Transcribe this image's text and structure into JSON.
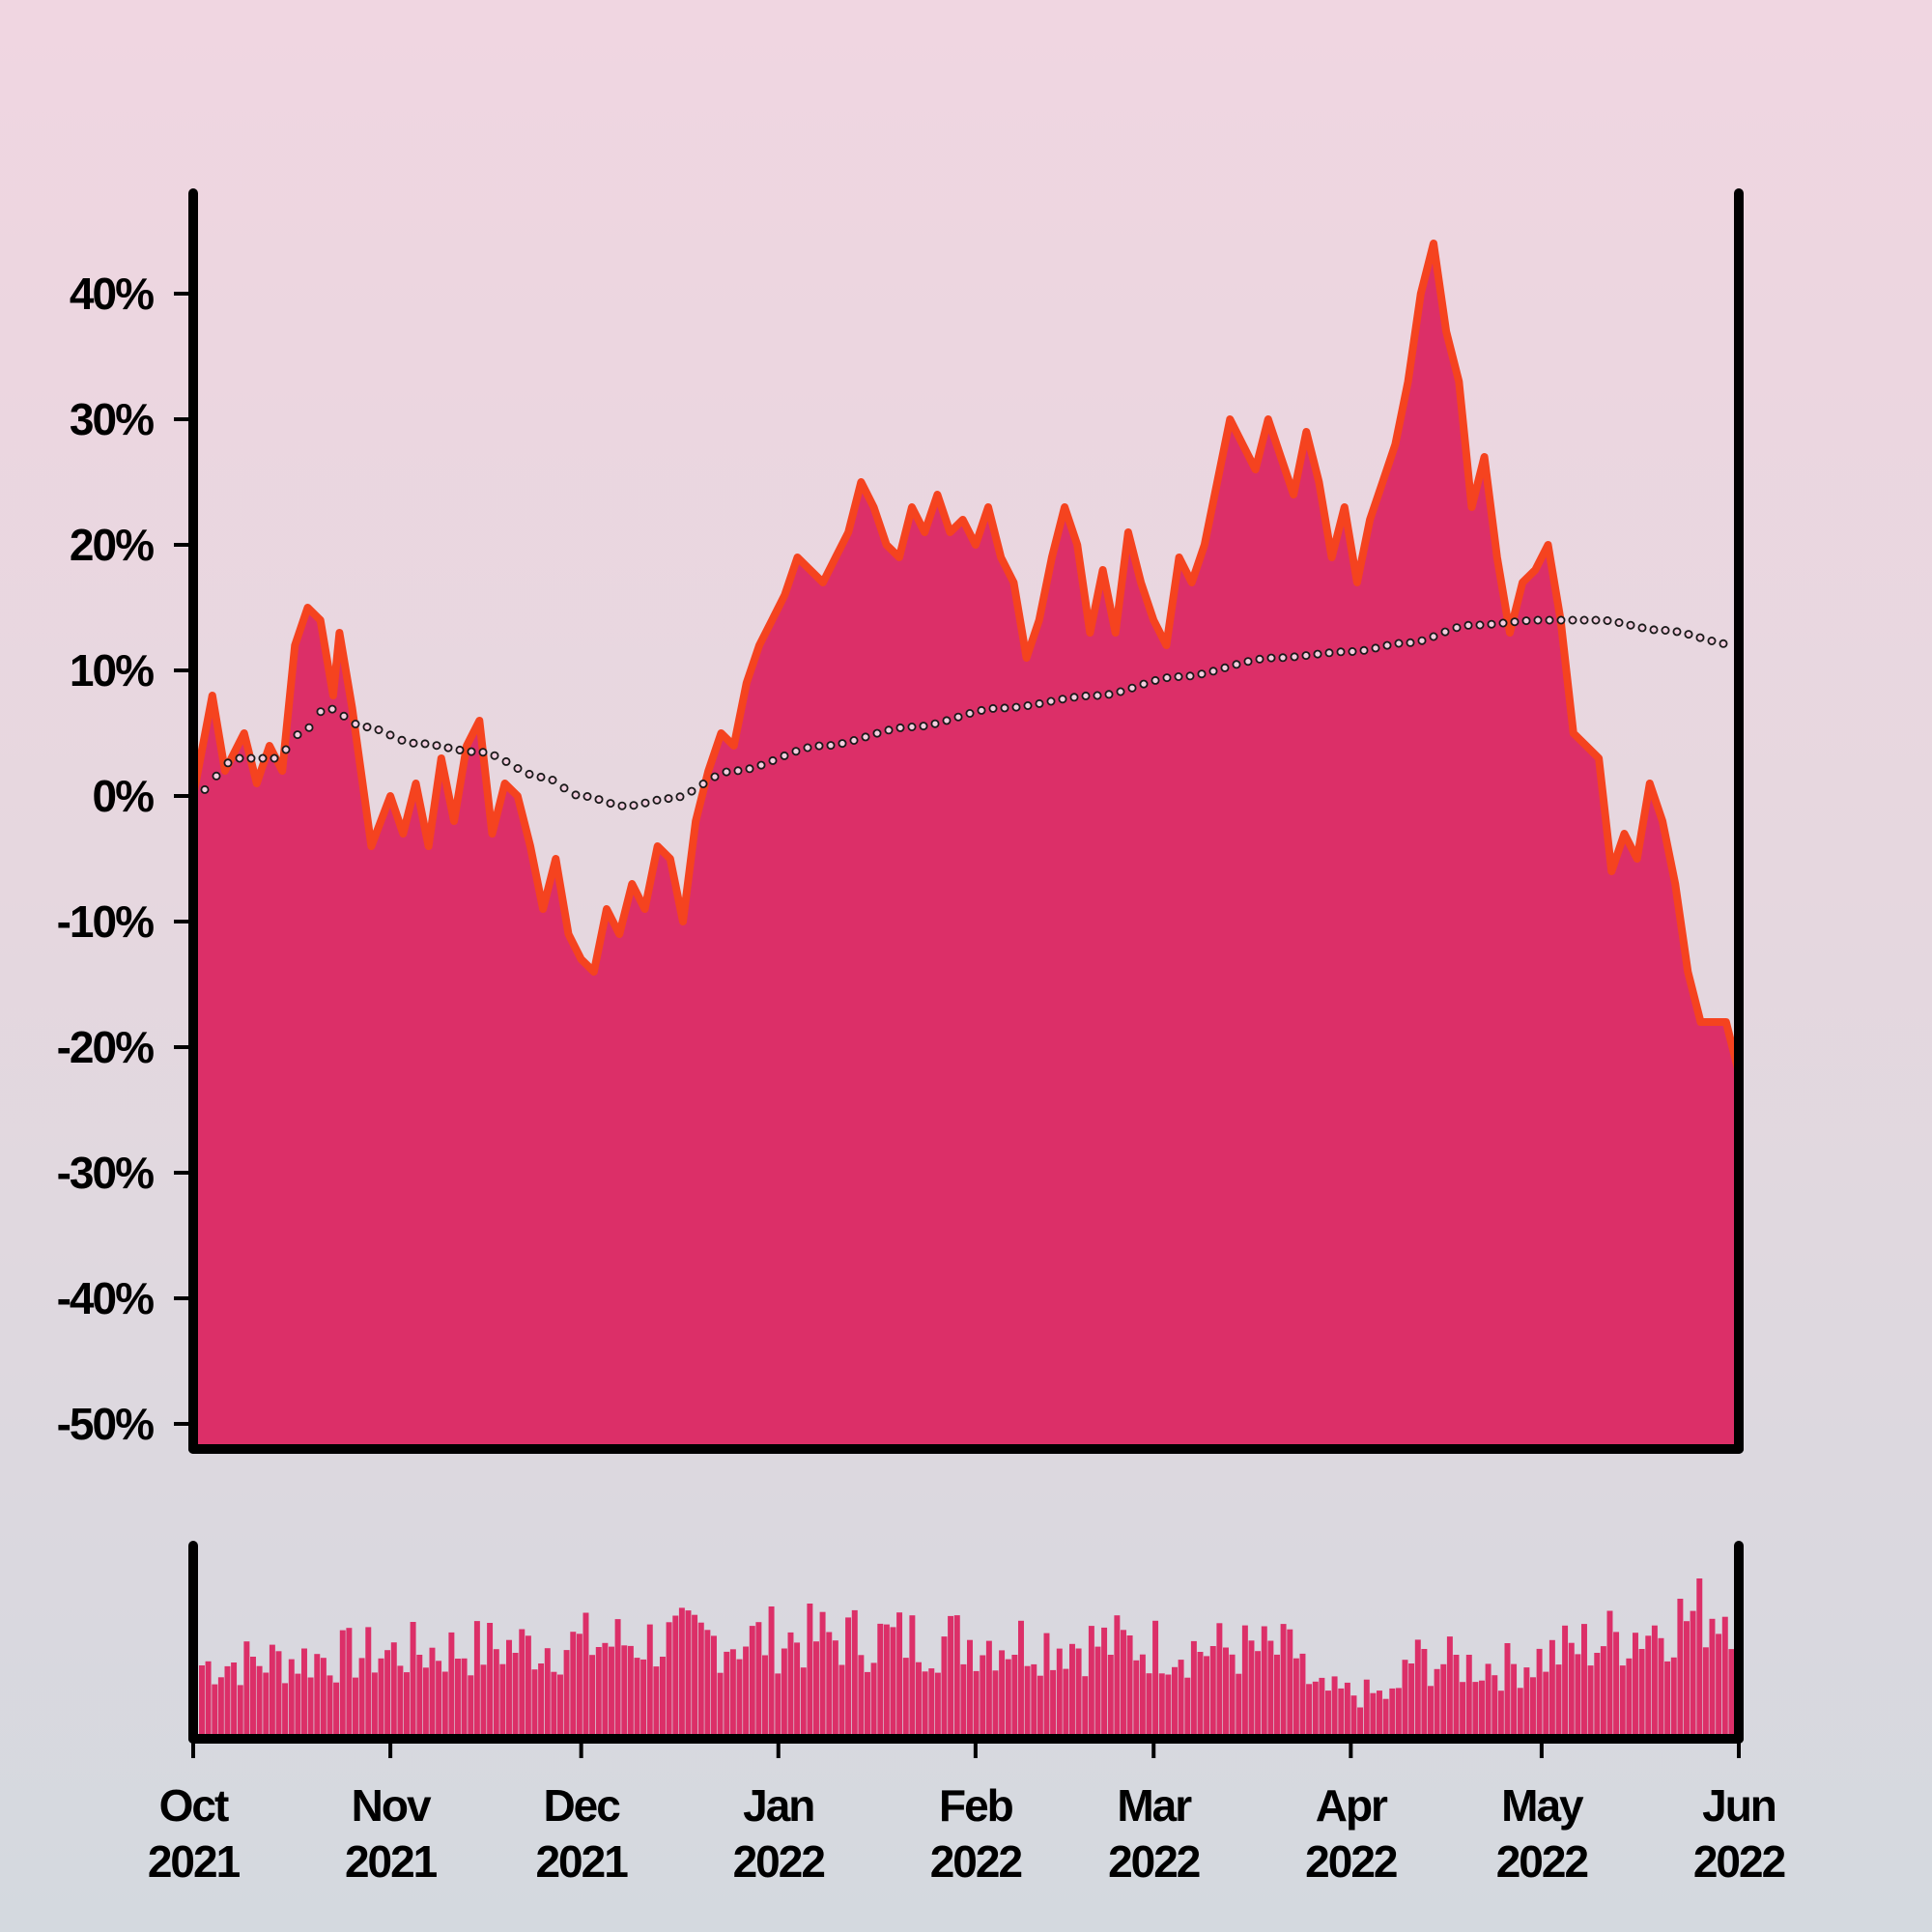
{
  "chart_data": {
    "type": "area",
    "title": "",
    "xlabel": "",
    "ylabel": "",
    "x_start": "2021-10-01",
    "x_end": "2022-06-01",
    "ylim": [
      -52,
      48
    ],
    "y_ticks": [
      40,
      30,
      20,
      10,
      0,
      -10,
      -20,
      -30,
      -40,
      -50
    ],
    "y_tick_labels": [
      "40%",
      "30%",
      "20%",
      "10%",
      "0%",
      "-10%",
      "-20%",
      "-30%",
      "-40%",
      "-50%"
    ],
    "x_ticks": [
      {
        "date": "2021-10-01",
        "month": "Oct",
        "year": "2021"
      },
      {
        "date": "2021-11-01",
        "month": "Nov",
        "year": "2021"
      },
      {
        "date": "2021-12-01",
        "month": "Dec",
        "year": "2021"
      },
      {
        "date": "2022-01-01",
        "month": "Jan",
        "year": "2022"
      },
      {
        "date": "2022-02-01",
        "month": "Feb",
        "year": "2022"
      },
      {
        "date": "2022-03-01",
        "month": "Mar",
        "year": "2022"
      },
      {
        "date": "2022-04-01",
        "month": "Apr",
        "year": "2022"
      },
      {
        "date": "2022-05-01",
        "month": "May",
        "year": "2022"
      },
      {
        "date": "2022-06-01",
        "month": "Jun",
        "year": "2022"
      }
    ],
    "colors": {
      "area_fill": "#dc2f68",
      "area_line": "#f5431f",
      "trend_stroke": "#1a1a1a",
      "trend_fill": "#f4cfe0",
      "axis": "#000000",
      "volume_fill": "#dc2f68"
    },
    "series": [
      {
        "type": "area",
        "points": [
          [
            "2021-10-01",
            0
          ],
          [
            "2021-10-04",
            8
          ],
          [
            "2021-10-06",
            2
          ],
          [
            "2021-10-09",
            5
          ],
          [
            "2021-10-11",
            1
          ],
          [
            "2021-10-13",
            4
          ],
          [
            "2021-10-15",
            2
          ],
          [
            "2021-10-17",
            12
          ],
          [
            "2021-10-19",
            15
          ],
          [
            "2021-10-21",
            14
          ],
          [
            "2021-10-23",
            8
          ],
          [
            "2021-10-24",
            13
          ],
          [
            "2021-10-26",
            7
          ],
          [
            "2021-10-29",
            -4
          ],
          [
            "2021-11-01",
            0
          ],
          [
            "2021-11-03",
            -3
          ],
          [
            "2021-11-05",
            1
          ],
          [
            "2021-11-07",
            -4
          ],
          [
            "2021-11-09",
            3
          ],
          [
            "2021-11-11",
            -2
          ],
          [
            "2021-11-13",
            4
          ],
          [
            "2021-11-15",
            6
          ],
          [
            "2021-11-17",
            -3
          ],
          [
            "2021-11-19",
            1
          ],
          [
            "2021-11-21",
            0
          ],
          [
            "2021-11-23",
            -4
          ],
          [
            "2021-11-25",
            -9
          ],
          [
            "2021-11-27",
            -5
          ],
          [
            "2021-11-29",
            -11
          ],
          [
            "2021-12-01",
            -13
          ],
          [
            "2021-12-03",
            -14
          ],
          [
            "2021-12-05",
            -9
          ],
          [
            "2021-12-07",
            -11
          ],
          [
            "2021-12-09",
            -7
          ],
          [
            "2021-12-11",
            -9
          ],
          [
            "2021-12-13",
            -4
          ],
          [
            "2021-12-15",
            -5
          ],
          [
            "2021-12-17",
            -10
          ],
          [
            "2021-12-19",
            -2
          ],
          [
            "2021-12-21",
            2
          ],
          [
            "2021-12-23",
            5
          ],
          [
            "2021-12-25",
            4
          ],
          [
            "2021-12-27",
            9
          ],
          [
            "2021-12-29",
            12
          ],
          [
            "2021-12-31",
            14
          ],
          [
            "2022-01-02",
            16
          ],
          [
            "2022-01-04",
            19
          ],
          [
            "2022-01-06",
            18
          ],
          [
            "2022-01-08",
            17
          ],
          [
            "2022-01-10",
            19
          ],
          [
            "2022-01-12",
            21
          ],
          [
            "2022-01-14",
            25
          ],
          [
            "2022-01-16",
            23
          ],
          [
            "2022-01-18",
            20
          ],
          [
            "2022-01-20",
            19
          ],
          [
            "2022-01-22",
            23
          ],
          [
            "2022-01-24",
            21
          ],
          [
            "2022-01-26",
            24
          ],
          [
            "2022-01-28",
            21
          ],
          [
            "2022-01-30",
            22
          ],
          [
            "2022-02-01",
            20
          ],
          [
            "2022-02-03",
            23
          ],
          [
            "2022-02-05",
            19
          ],
          [
            "2022-02-07",
            17
          ],
          [
            "2022-02-09",
            11
          ],
          [
            "2022-02-11",
            14
          ],
          [
            "2022-02-13",
            19
          ],
          [
            "2022-02-15",
            23
          ],
          [
            "2022-02-17",
            20
          ],
          [
            "2022-02-19",
            13
          ],
          [
            "2022-02-21",
            18
          ],
          [
            "2022-02-23",
            13
          ],
          [
            "2022-02-25",
            21
          ],
          [
            "2022-02-27",
            17
          ],
          [
            "2022-03-01",
            14
          ],
          [
            "2022-03-03",
            12
          ],
          [
            "2022-03-05",
            19
          ],
          [
            "2022-03-07",
            17
          ],
          [
            "2022-03-09",
            20
          ],
          [
            "2022-03-11",
            25
          ],
          [
            "2022-03-13",
            30
          ],
          [
            "2022-03-15",
            28
          ],
          [
            "2022-03-17",
            26
          ],
          [
            "2022-03-19",
            30
          ],
          [
            "2022-03-21",
            27
          ],
          [
            "2022-03-23",
            24
          ],
          [
            "2022-03-25",
            29
          ],
          [
            "2022-03-27",
            25
          ],
          [
            "2022-03-29",
            19
          ],
          [
            "2022-03-31",
            23
          ],
          [
            "2022-04-02",
            17
          ],
          [
            "2022-04-04",
            22
          ],
          [
            "2022-04-06",
            25
          ],
          [
            "2022-04-08",
            28
          ],
          [
            "2022-04-10",
            33
          ],
          [
            "2022-04-12",
            40
          ],
          [
            "2022-04-14",
            44
          ],
          [
            "2022-04-16",
            37
          ],
          [
            "2022-04-18",
            33
          ],
          [
            "2022-04-20",
            23
          ],
          [
            "2022-04-22",
            27
          ],
          [
            "2022-04-24",
            19
          ],
          [
            "2022-04-26",
            13
          ],
          [
            "2022-04-28",
            17
          ],
          [
            "2022-04-30",
            18
          ],
          [
            "2022-05-02",
            20
          ],
          [
            "2022-05-04",
            14
          ],
          [
            "2022-05-06",
            5
          ],
          [
            "2022-05-08",
            4
          ],
          [
            "2022-05-10",
            3
          ],
          [
            "2022-05-12",
            -6
          ],
          [
            "2022-05-14",
            -3
          ],
          [
            "2022-05-16",
            -5
          ],
          [
            "2022-05-18",
            1
          ],
          [
            "2022-05-20",
            -2
          ],
          [
            "2022-05-22",
            -7
          ],
          [
            "2022-05-24",
            -14
          ],
          [
            "2022-05-26",
            -18
          ],
          [
            "2022-05-28",
            -18
          ],
          [
            "2022-05-30",
            -18
          ],
          [
            "2022-06-01",
            -22
          ]
        ]
      },
      {
        "type": "trend",
        "points": [
          [
            "2021-10-01",
            0
          ],
          [
            "2021-10-08",
            3
          ],
          [
            "2021-10-14",
            3
          ],
          [
            "2021-10-18",
            5
          ],
          [
            "2021-10-22",
            7
          ],
          [
            "2021-10-28",
            5.5
          ],
          [
            "2021-11-05",
            4.2
          ],
          [
            "2021-11-15",
            3.5
          ],
          [
            "2021-11-25",
            1.5
          ],
          [
            "2021-12-01",
            0
          ],
          [
            "2021-12-08",
            -0.8
          ],
          [
            "2021-12-15",
            -0.2
          ],
          [
            "2021-12-25",
            2
          ],
          [
            "2022-01-08",
            4
          ],
          [
            "2022-01-22",
            5.5
          ],
          [
            "2022-02-05",
            7
          ],
          [
            "2022-02-20",
            8
          ],
          [
            "2022-03-05",
            9.5
          ],
          [
            "2022-03-20",
            11
          ],
          [
            "2022-04-01",
            11.5
          ],
          [
            "2022-04-10",
            12.2
          ],
          [
            "2022-04-20",
            13.6
          ],
          [
            "2022-05-01",
            14
          ],
          [
            "2022-05-10",
            14
          ],
          [
            "2022-05-20",
            13.2
          ],
          [
            "2022-06-01",
            12
          ]
        ]
      }
    ],
    "volume_seed": 7
  }
}
